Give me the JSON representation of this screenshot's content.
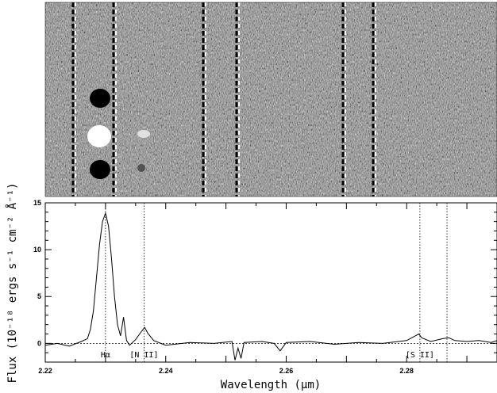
{
  "chart_data": {
    "type": "line",
    "panels": [
      "2d-spectrum-image",
      "1d-spectrum-plot"
    ],
    "xlabel": "Wavelength (μm)",
    "ylabel": "Flux (10⁻¹⁸ ergs s⁻¹ cm⁻² Å⁻¹)",
    "xlim": [
      2.22,
      2.295
    ],
    "ylim": [
      -2,
      15
    ],
    "x_tick_labels": [
      "2.22",
      "2.24",
      "2.26",
      "2.28"
    ],
    "x_ticks": [
      2.22,
      2.24,
      2.26,
      2.28
    ],
    "y_tick_labels": [
      "0",
      "5",
      "10",
      "15"
    ],
    "y_ticks": [
      0,
      5,
      10,
      15
    ],
    "line_markers": [
      {
        "label": "Hα",
        "x": 2.23
      },
      {
        "label": "[N II]",
        "x": 2.2364
      },
      {
        "label": "[S II]",
        "x": 2.2822
      },
      {
        "label": "",
        "x": 2.2867
      }
    ],
    "series": [
      {
        "x": [
          2.22,
          2.222,
          2.224,
          2.226,
          2.227,
          2.2275,
          2.228,
          2.2285,
          2.229,
          2.2295,
          2.23,
          2.2305,
          2.231,
          2.2315,
          2.232,
          2.2325,
          2.233,
          2.2335,
          2.234,
          2.235,
          2.236,
          2.2365,
          2.237,
          2.238,
          2.24,
          2.244,
          2.248,
          2.251,
          2.2515,
          2.252,
          2.2525,
          2.253,
          2.256,
          2.258,
          2.259,
          2.26,
          2.264,
          2.268,
          2.272,
          2.276,
          2.28,
          2.282,
          2.2825,
          2.284,
          2.286,
          2.287,
          2.288,
          2.29,
          2.292,
          2.294,
          2.295
        ],
        "y": [
          -0.2,
          0.0,
          -0.3,
          0.2,
          0.5,
          1.5,
          3.5,
          7.0,
          10.5,
          13.0,
          13.9,
          12.5,
          9.0,
          5.0,
          2.0,
          0.8,
          2.8,
          0.3,
          -0.2,
          0.4,
          1.3,
          1.7,
          1.1,
          0.3,
          -0.2,
          0.1,
          0.0,
          0.2,
          -1.8,
          -0.5,
          -1.6,
          0.1,
          0.2,
          0.0,
          -0.8,
          0.1,
          0.2,
          -0.1,
          0.1,
          0.0,
          0.3,
          1.0,
          0.6,
          0.2,
          0.5,
          0.6,
          0.3,
          0.2,
          0.3,
          0.1,
          0.3
        ]
      }
    ]
  }
}
